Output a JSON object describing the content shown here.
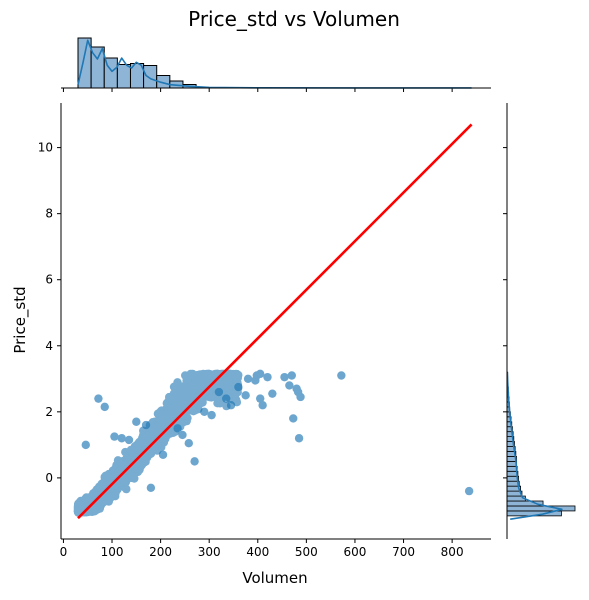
{
  "chart_data": {
    "type": "scatter",
    "title": "Price_std vs Volumen",
    "xlabel": "Volumen",
    "ylabel": "Price_std",
    "xlim": [
      -5,
      880
    ],
    "ylim": [
      -1.85,
      11.35
    ],
    "x_ticks": [
      0,
      100,
      200,
      300,
      400,
      500,
      600,
      700,
      800
    ],
    "y_ticks": [
      0,
      2,
      4,
      6,
      8,
      10
    ],
    "grid": false,
    "colors": {
      "points": "#1f77b4",
      "regression": "#ff0000",
      "hist_fill": "#8fb5d6",
      "kde": "#1f77b4"
    },
    "regression_line": {
      "x": [
        30,
        840
      ],
      "y": [
        -1.22,
        10.7
      ]
    },
    "main_cloud": {
      "description_x_range": [
        30,
        360
      ],
      "y_cap": 3.15,
      "trend_points": [
        {
          "x": 30,
          "y": -1.0
        },
        {
          "x": 60,
          "y": -0.8
        },
        {
          "x": 100,
          "y": -0.2
        },
        {
          "x": 150,
          "y": 0.6
        },
        {
          "x": 200,
          "y": 1.5
        },
        {
          "x": 250,
          "y": 2.4
        },
        {
          "x": 300,
          "y": 3.0
        },
        {
          "x": 350,
          "y": 3.1
        }
      ]
    },
    "scatter_outliers": [
      {
        "x": 46,
        "y": 1.0
      },
      {
        "x": 72,
        "y": 2.4
      },
      {
        "x": 85,
        "y": 2.15
      },
      {
        "x": 105,
        "y": 1.25
      },
      {
        "x": 120,
        "y": 1.2
      },
      {
        "x": 135,
        "y": 1.15
      },
      {
        "x": 150,
        "y": 1.7
      },
      {
        "x": 170,
        "y": 1.6
      },
      {
        "x": 180,
        "y": -0.3
      },
      {
        "x": 205,
        "y": 0.7
      },
      {
        "x": 235,
        "y": 1.5
      },
      {
        "x": 245,
        "y": 1.3
      },
      {
        "x": 258,
        "y": 1.05
      },
      {
        "x": 270,
        "y": 0.5
      },
      {
        "x": 290,
        "y": 2.0
      },
      {
        "x": 305,
        "y": 1.9
      },
      {
        "x": 320,
        "y": 2.6
      },
      {
        "x": 335,
        "y": 2.4
      },
      {
        "x": 345,
        "y": 2.2
      },
      {
        "x": 360,
        "y": 2.75
      },
      {
        "x": 375,
        "y": 2.5
      },
      {
        "x": 380,
        "y": 3.0
      },
      {
        "x": 395,
        "y": 2.95
      },
      {
        "x": 398,
        "y": 3.1
      },
      {
        "x": 405,
        "y": 3.15
      },
      {
        "x": 405,
        "y": 2.4
      },
      {
        "x": 410,
        "y": 2.2
      },
      {
        "x": 420,
        "y": 3.05
      },
      {
        "x": 430,
        "y": 2.55
      },
      {
        "x": 455,
        "y": 3.05
      },
      {
        "x": 465,
        "y": 2.8
      },
      {
        "x": 470,
        "y": 3.1
      },
      {
        "x": 473,
        "y": 1.8
      },
      {
        "x": 480,
        "y": 2.7
      },
      {
        "x": 483,
        "y": 2.6
      },
      {
        "x": 485,
        "y": 1.2
      },
      {
        "x": 488,
        "y": 2.45
      },
      {
        "x": 572,
        "y": 3.1
      },
      {
        "x": 835,
        "y": -0.4
      }
    ],
    "x_histogram": {
      "bin_edges": [
        30,
        57,
        84,
        111,
        138,
        165,
        192,
        219,
        246,
        273
      ],
      "relative_heights": [
        1.0,
        0.82,
        0.6,
        0.47,
        0.49,
        0.45,
        0.25,
        0.14,
        0.07
      ],
      "kde": [
        {
          "x": 30,
          "y": 0.08
        },
        {
          "x": 40,
          "y": 0.6
        },
        {
          "x": 50,
          "y": 1.15
        },
        {
          "x": 60,
          "y": 0.85
        },
        {
          "x": 70,
          "y": 0.7
        },
        {
          "x": 80,
          "y": 0.95
        },
        {
          "x": 90,
          "y": 0.55
        },
        {
          "x": 100,
          "y": 0.4
        },
        {
          "x": 110,
          "y": 0.5
        },
        {
          "x": 120,
          "y": 0.72
        },
        {
          "x": 130,
          "y": 0.55
        },
        {
          "x": 140,
          "y": 0.48
        },
        {
          "x": 150,
          "y": 0.62
        },
        {
          "x": 160,
          "y": 0.55
        },
        {
          "x": 170,
          "y": 0.3
        },
        {
          "x": 180,
          "y": 0.22
        },
        {
          "x": 200,
          "y": 0.14
        },
        {
          "x": 220,
          "y": 0.08
        },
        {
          "x": 260,
          "y": 0.04
        },
        {
          "x": 300,
          "y": 0.015
        },
        {
          "x": 400,
          "y": 0.006
        },
        {
          "x": 600,
          "y": 0.003
        },
        {
          "x": 840,
          "y": 0.002
        }
      ]
    },
    "y_histogram": {
      "bin_edges": [
        -1.15,
        -1.0,
        -0.85,
        -0.7,
        -0.55,
        -0.4,
        -0.25,
        -0.1,
        0.05,
        0.2,
        0.35,
        0.5,
        0.65,
        0.8,
        0.95,
        1.1,
        1.25,
        1.4,
        1.55,
        1.7,
        1.85,
        2.0,
        2.15,
        2.3,
        2.45,
        2.6,
        2.75,
        2.9,
        3.05,
        3.2
      ],
      "relative_heights": [
        0.8,
        1.0,
        0.53,
        0.27,
        0.22,
        0.2,
        0.18,
        0.17,
        0.16,
        0.15,
        0.14,
        0.14,
        0.13,
        0.12,
        0.11,
        0.1,
        0.09,
        0.08,
        0.07,
        0.06,
        0.05,
        0.04,
        0.035,
        0.03,
        0.025,
        0.02,
        0.015,
        0.01,
        0.01
      ],
      "kde": [
        {
          "y": -1.25,
          "v": 0.05
        },
        {
          "y": -1.1,
          "v": 0.55
        },
        {
          "y": -0.95,
          "v": 0.85
        },
        {
          "y": -0.8,
          "v": 0.48
        },
        {
          "y": -0.6,
          "v": 0.24
        },
        {
          "y": -0.3,
          "v": 0.18
        },
        {
          "y": 0.0,
          "v": 0.16
        },
        {
          "y": 0.5,
          "v": 0.14
        },
        {
          "y": 1.0,
          "v": 0.1
        },
        {
          "y": 1.5,
          "v": 0.07
        },
        {
          "y": 2.0,
          "v": 0.04
        },
        {
          "y": 2.5,
          "v": 0.02
        },
        {
          "y": 3.0,
          "v": 0.01
        },
        {
          "y": 3.2,
          "v": 0.005
        }
      ]
    }
  }
}
